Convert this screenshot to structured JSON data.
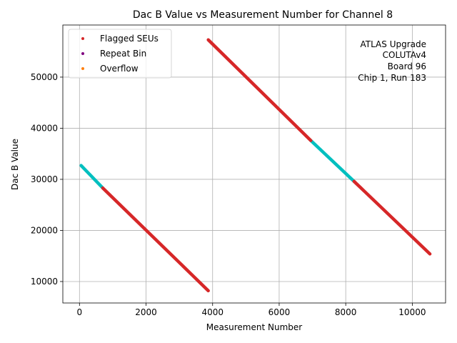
{
  "chart_data": {
    "type": "scatter",
    "title": "Dac B Value vs Measurement Number for Channel 8",
    "xlabel": "Measurement Number",
    "ylabel": "Dac B Value",
    "xlim": [
      -500,
      11000
    ],
    "ylim": [
      5800,
      60200
    ],
    "xticks": [
      0,
      2000,
      4000,
      6000,
      8000,
      10000
    ],
    "xtick_labels": [
      "0",
      "2000",
      "4000",
      "6000",
      "8000",
      "10000"
    ],
    "yticks": [
      10000,
      20000,
      30000,
      40000,
      50000
    ],
    "ytick_labels": [
      "10000",
      "20000",
      "30000",
      "40000",
      "50000"
    ],
    "grid": true,
    "legend_position": "top-left",
    "legend": [
      {
        "label": "Flagged SEUs",
        "color": "#d62728"
      },
      {
        "label": "Repeat Bin",
        "color": "#800080"
      },
      {
        "label": "Overflow",
        "color": "#ff7f0e"
      }
    ],
    "annotation": [
      "ATLAS Upgrade",
      "COLUTAv4",
      "Board 96",
      "Chip 1, Run 183"
    ],
    "series": [
      {
        "name": "Measurements (cyan)",
        "color": "#00bfbf",
        "segments": [
          {
            "x": [
              50,
              700
            ],
            "y": [
              32700,
              28300
            ]
          },
          {
            "x": [
              6950,
              8250
            ],
            "y": [
              37600,
              29600
            ]
          }
        ]
      },
      {
        "name": "Flagged SEUs",
        "color": "#d62728",
        "segments": [
          {
            "x": [
              700,
              3870
            ],
            "y": [
              28300,
              8200
            ]
          },
          {
            "x": [
              3870,
              6950
            ],
            "y": [
              57300,
              37600
            ]
          },
          {
            "x": [
              8250,
              10530
            ],
            "y": [
              29600,
              15400
            ]
          }
        ]
      }
    ]
  }
}
